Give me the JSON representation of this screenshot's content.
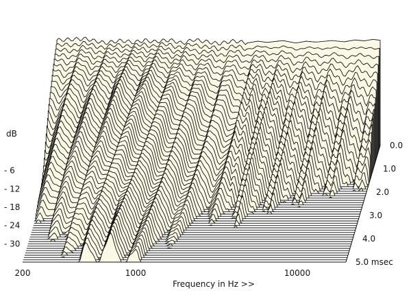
{
  "chart_data": {
    "type": "waterfall",
    "title": "",
    "xlabel": "Frequency in Hz >>",
    "ylabel": "dB",
    "zlabel": "msec",
    "x_scale": "log",
    "x_range": [
      200,
      20000
    ],
    "x_ticks": [
      {
        "value": 200,
        "label": "200"
      },
      {
        "value": 1000,
        "label": "1000"
      },
      {
        "value": 10000,
        "label": "10000"
      }
    ],
    "y_range": [
      -36,
      0
    ],
    "y_ticks": [
      {
        "value": -6,
        "label": "- 6"
      },
      {
        "value": -12,
        "label": "- 12"
      },
      {
        "value": -18,
        "label": "- 18"
      },
      {
        "value": -24,
        "label": "- 24"
      },
      {
        "value": -30,
        "label": "- 30"
      }
    ],
    "time_range": [
      0,
      5
    ],
    "time_ticks": [
      {
        "value": 0.0,
        "label": "0.0"
      },
      {
        "value": 1.0,
        "label": "1.0"
      },
      {
        "value": 2.0,
        "label": "2.0"
      },
      {
        "value": 3.0,
        "label": "3.0"
      },
      {
        "value": 4.0,
        "label": "4.0"
      },
      {
        "value": 5.0,
        "label": "5.0"
      }
    ],
    "slice_count": 52,
    "initial_response": [
      {
        "freq": 200,
        "db": -1.5
      },
      {
        "freq": 250,
        "db": -1.2
      },
      {
        "freq": 300,
        "db": -1.0
      },
      {
        "freq": 350,
        "db": -1.8
      },
      {
        "freq": 400,
        "db": -2.4
      },
      {
        "freq": 500,
        "db": -1.6
      },
      {
        "freq": 600,
        "db": -2.2
      },
      {
        "freq": 700,
        "db": -1.5
      },
      {
        "freq": 800,
        "db": -2.0
      },
      {
        "freq": 1000,
        "db": -1.4
      },
      {
        "freq": 1200,
        "db": -2.5
      },
      {
        "freq": 1400,
        "db": -1.3
      },
      {
        "freq": 1600,
        "db": -1.8
      },
      {
        "freq": 2000,
        "db": -2.6
      },
      {
        "freq": 2500,
        "db": -1.7
      },
      {
        "freq": 3000,
        "db": -2.4
      },
      {
        "freq": 3500,
        "db": -1.8
      },
      {
        "freq": 4000,
        "db": -2.2
      },
      {
        "freq": 5000,
        "db": -1.6
      },
      {
        "freq": 6000,
        "db": -2.4
      },
      {
        "freq": 7000,
        "db": -1.8
      },
      {
        "freq": 8000,
        "db": -2.1
      },
      {
        "freq": 10000,
        "db": -1.6
      },
      {
        "freq": 12000,
        "db": -2.0
      },
      {
        "freq": 14000,
        "db": -1.4
      },
      {
        "freq": 16000,
        "db": -1.7
      },
      {
        "freq": 18000,
        "db": -1.2
      },
      {
        "freq": 20000,
        "db": -1.5
      }
    ],
    "decay_rate_db_per_ms": [
      {
        "freq": 200,
        "rate": 11
      },
      {
        "freq": 300,
        "rate": 8
      },
      {
        "freq": 400,
        "rate": 7
      },
      {
        "freq": 500,
        "rate": 6
      },
      {
        "freq": 700,
        "rate": 5.5
      },
      {
        "freq": 1000,
        "rate": 6.5
      },
      {
        "freq": 1500,
        "rate": 8
      },
      {
        "freq": 2000,
        "rate": 10
      },
      {
        "freq": 3000,
        "rate": 11
      },
      {
        "freq": 4000,
        "rate": 10
      },
      {
        "freq": 5000,
        "rate": 12
      },
      {
        "freq": 7000,
        "rate": 13
      },
      {
        "freq": 10000,
        "rate": 15
      },
      {
        "freq": 14000,
        "rate": 17
      },
      {
        "freq": 20000,
        "rate": 19
      }
    ],
    "colors": {
      "slice_fill": "#fbf8e6",
      "line": "#111111",
      "background": "#ffffff"
    }
  }
}
